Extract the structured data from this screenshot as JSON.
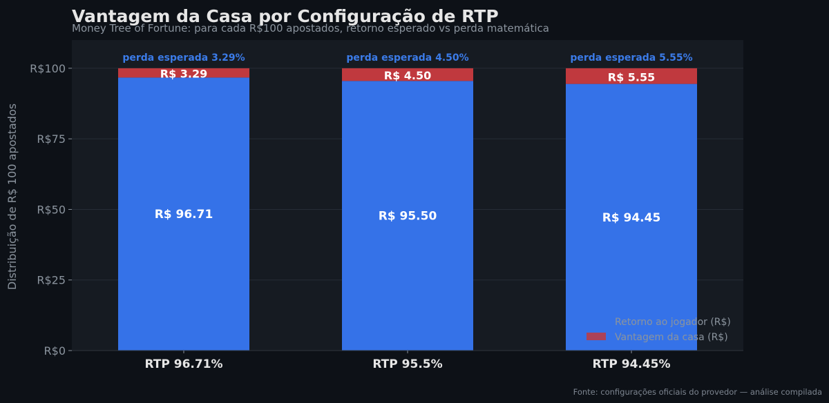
{
  "chart_data": {
    "type": "bar",
    "stacked": true,
    "title": "Vantagem da Casa por Configuração de RTP",
    "subtitle": "Money Tree of Fortune: para cada R$100 apostados, retorno esperado vs perda matemática",
    "ylabel": "Distribuição de R$ 100 apostados",
    "xlabel": "",
    "ylim": [
      0,
      110
    ],
    "yticks": [
      0,
      25,
      50,
      75,
      100
    ],
    "ytick_labels": [
      "R$0",
      "R$25",
      "R$50",
      "R$75",
      "R$100"
    ],
    "categories": [
      "RTP 96.71%",
      "RTP 95.5%",
      "RTP 94.45%"
    ],
    "grid": true,
    "legend_position": "bottom-right",
    "series": [
      {
        "name": "Retorno ao jogador (R$)",
        "color": "#3572e8",
        "values": [
          96.71,
          95.5,
          94.45
        ],
        "labels": [
          "R$ 96.71",
          "R$ 95.50",
          "R$ 94.45"
        ]
      },
      {
        "name": "Vantagem da casa (R$)",
        "color": "#c0393e",
        "values": [
          3.29,
          4.5,
          5.55
        ],
        "labels": [
          "R$ 3.29",
          "R$ 4.50",
          "R$ 5.55"
        ]
      }
    ],
    "annotations": [
      "perda esperada 3.29%",
      "perda esperada 4.50%",
      "perda esperada 5.55%"
    ],
    "annotation_color": "#3b7be8",
    "source": "Fonte: configurações oficiais do provedor — análise compilada"
  },
  "colors": {
    "background": "#0d1117",
    "plot_background": "#161b22",
    "grid": "#262c36",
    "text": "#e6e6e6",
    "muted": "#8b949e"
  }
}
